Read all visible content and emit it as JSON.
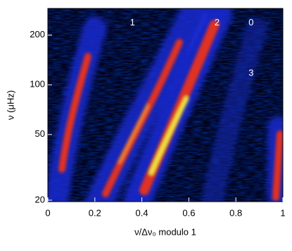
{
  "chart_data": {
    "type": "heatmap",
    "xlabel": "ν/Δν₀ modulo 1",
    "ylabel": "ν (μHz)",
    "xlim": [
      0,
      1
    ],
    "xticks": [
      0,
      0.2,
      0.4,
      0.6,
      0.8,
      1
    ],
    "ylim": [
      19.6,
      290
    ],
    "yticks": [
      20,
      50,
      100,
      200
    ],
    "log_y": true,
    "annotations": [
      {
        "text": "1",
        "x": 0.36,
        "y": 237
      },
      {
        "text": "2",
        "x": 0.72,
        "y": 237
      },
      {
        "text": "0",
        "x": 0.865,
        "y": 237
      },
      {
        "text": "3",
        "x": 0.865,
        "y": 117
      }
    ]
  }
}
